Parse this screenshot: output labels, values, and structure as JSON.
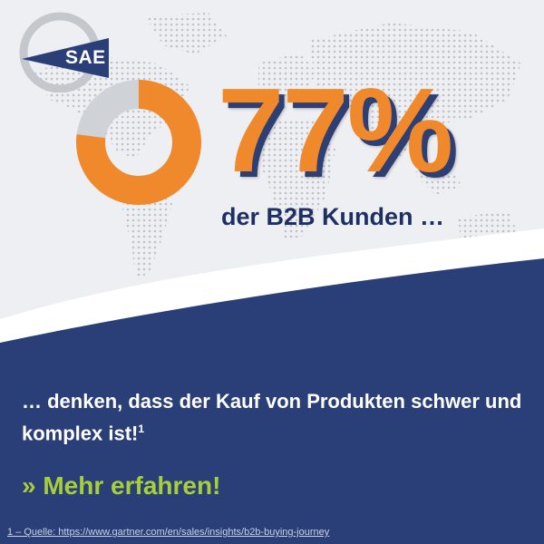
{
  "brand": {
    "logo_text": "SAE"
  },
  "headline": {
    "number": "77%",
    "subline": "der B2B Kunden …"
  },
  "donut": {
    "fraction": 0.77,
    "fill_color": "#f0892b",
    "rest_color": "#cfd2d6"
  },
  "body": {
    "text": "… denken, dass der Kauf von Produkten schwer und komplex ist!",
    "footnote_marker": "1"
  },
  "cta": {
    "label": "» Mehr erfahren!"
  },
  "footnote": {
    "text": "1 – Quelle: https://www.gartner.com/en/sales/insights/b2b-buying-journey"
  },
  "colors": {
    "navy": "#2a3f77",
    "orange": "#f0892b",
    "green": "#a7cf3a",
    "background": "#eeeff2"
  }
}
